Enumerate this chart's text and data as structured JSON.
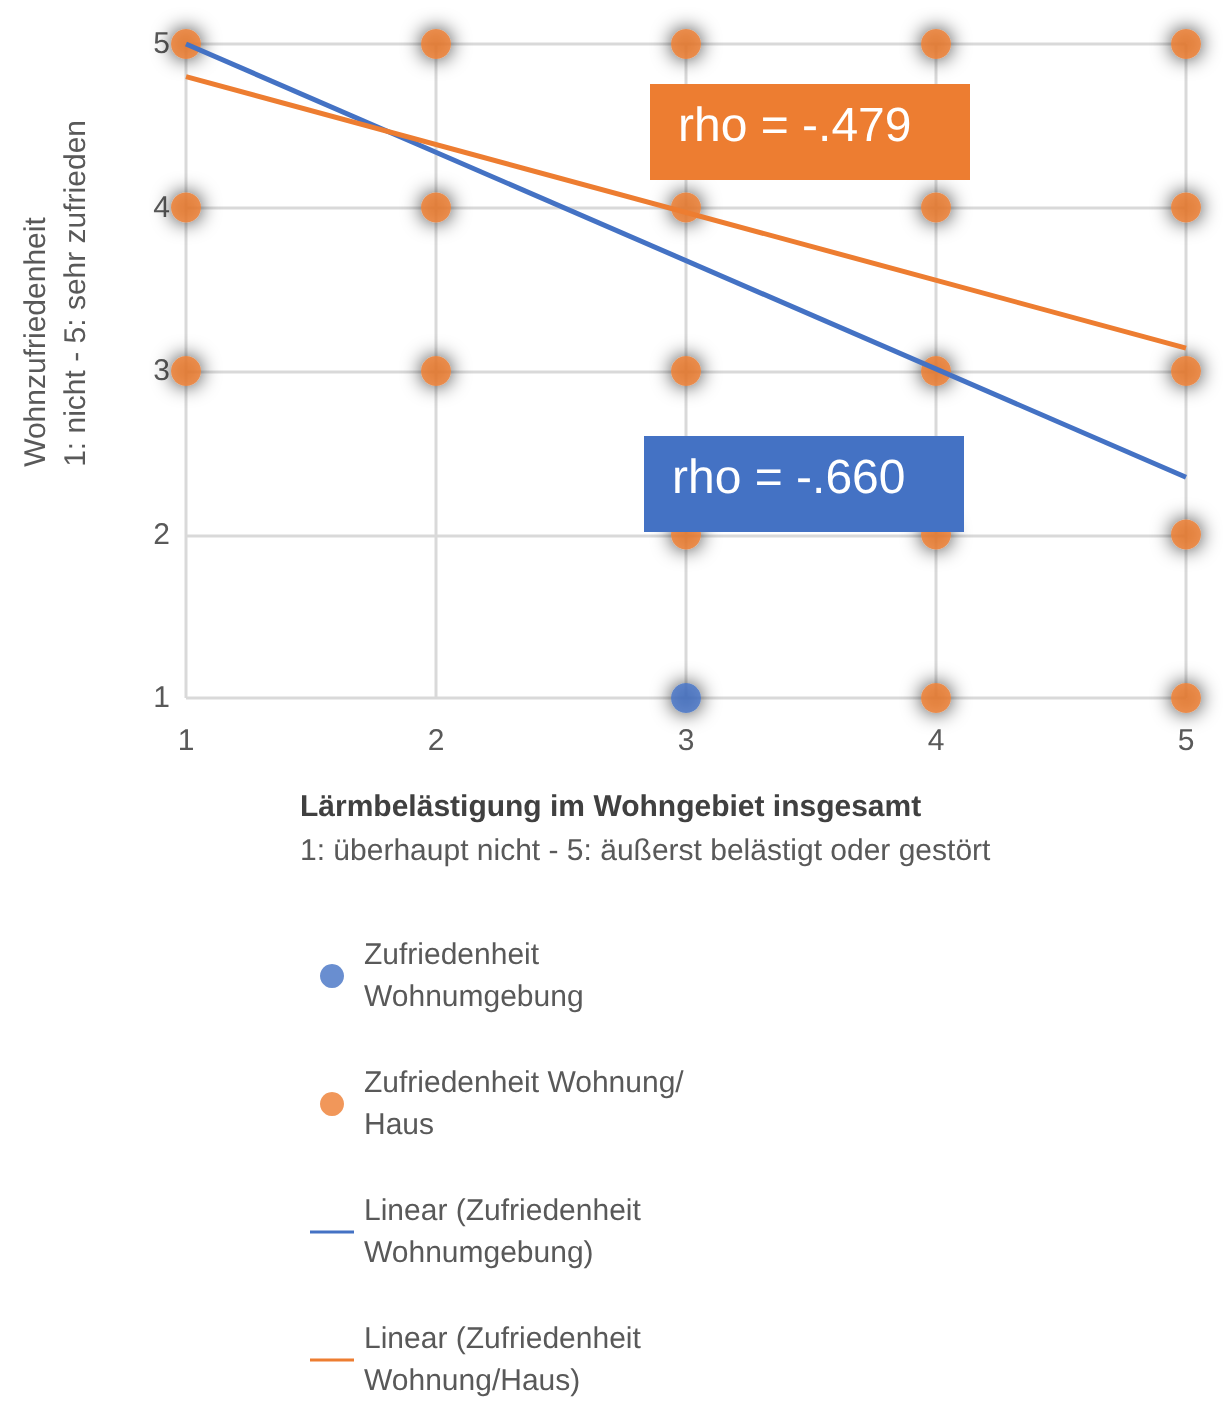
{
  "chart_data": {
    "type": "scatter",
    "xlabel": "Lärmbelästigung im Wohngebiet insgesamt\n1: überhaupt nicht - 5: äußerst belästigt oder gestört",
    "ylabel": "Wohnzufriedenheit\n1: nicht - 5: sehr zufrieden",
    "xlim": [
      1,
      5
    ],
    "ylim": [
      1,
      5
    ],
    "xticks": [
      1,
      2,
      3,
      4,
      5
    ],
    "yticks": [
      1,
      2,
      3,
      4,
      5
    ],
    "grid": true,
    "legend": "bottom",
    "marker": "circle",
    "annotations": [
      "rho = -.479",
      "rho = -.660"
    ],
    "series": [
      {
        "name": "Zufriedenheit Wohnumgebung",
        "color": "#4472c4",
        "x": [
          3
        ],
        "values": [
          1
        ]
      },
      {
        "name": "Zufriedenheit Wohnung/Haus",
        "color": "#ed7d31",
        "x": [
          1,
          2,
          3,
          4,
          5,
          1,
          2,
          3,
          4,
          5,
          1,
          2,
          3,
          4,
          5,
          3,
          4,
          5,
          4,
          5
        ],
        "values": [
          5,
          5,
          5,
          5,
          5,
          4,
          4,
          4,
          4,
          4,
          3,
          3,
          3,
          3,
          3,
          2,
          2,
          2,
          1,
          1
        ]
      },
      {
        "name": "Linear (Zufriedenheit Wohnumgebung)",
        "type": "line",
        "marker": "none",
        "color": "#4472c4",
        "x": [
          1,
          5
        ],
        "values": [
          5,
          2.35
        ]
      },
      {
        "name": "Linear (Zufriedenheit Wohnung/Haus)",
        "type": "line",
        "marker": "none",
        "color": "#ed7d31",
        "x": [
          1,
          5
        ],
        "values": [
          4.8,
          3.14
        ]
      }
    ]
  }
}
